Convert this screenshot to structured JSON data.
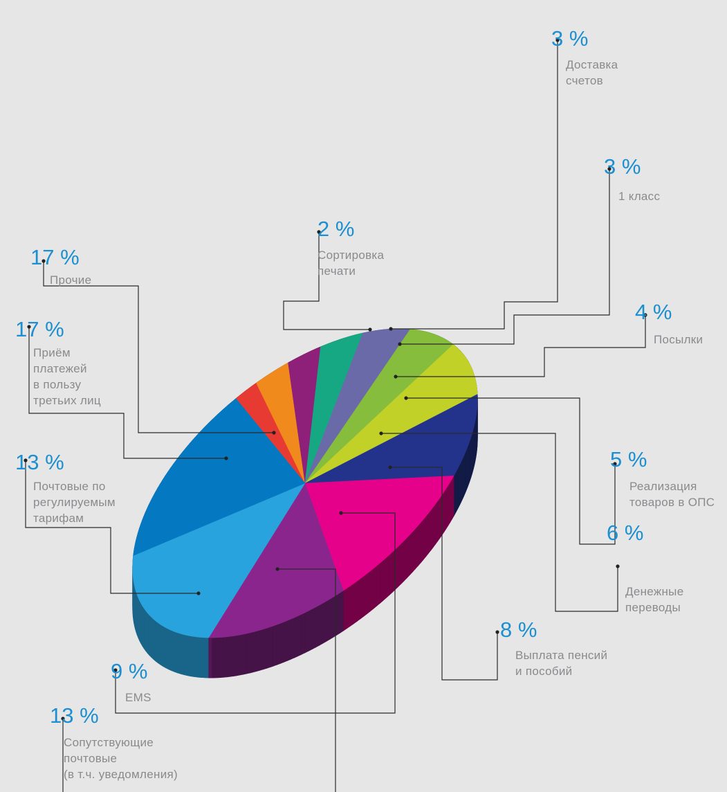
{
  "chart_data": {
    "type": "pie",
    "unit": "%",
    "slices": [
      {
        "name": "Сортировка печати",
        "value": 2,
        "label": "2 %",
        "lines": [
          "Сортировка",
          "печати"
        ],
        "color": "#e73a33"
      },
      {
        "name": "Доставка счетов",
        "value": 3,
        "label": "3 %",
        "lines": [
          "Доставка",
          "счетов"
        ],
        "color": "#f08a1d"
      },
      {
        "name": "1 класс",
        "value": 3,
        "label": "3 %",
        "lines": [
          "1 класс"
        ],
        "color": "#8e2079"
      },
      {
        "name": "Посылки",
        "value": 4,
        "label": "4 %",
        "lines": [
          "Посылки"
        ],
        "color": "#16a883"
      },
      {
        "name": "Реализация товаров в ОПС",
        "value": 5,
        "label": "5 %",
        "lines": [
          "Реализация",
          "товаров в ОПС"
        ],
        "color": "#6b6aa8"
      },
      {
        "name": "Денежные переводы",
        "value": 6,
        "label": "6 %",
        "lines": [
          "Денежные",
          "переводы"
        ],
        "color": "#86bd3c"
      },
      {
        "name": "Выплата пенсий и пособий",
        "value": 8,
        "label": "8 %",
        "lines": [
          "Выплата пенсий",
          "и пособий"
        ],
        "color": "#c2d128"
      },
      {
        "name": "EMS",
        "value": 9,
        "label": "9 %",
        "lines": [
          "EMS"
        ],
        "color": "#23338c"
      },
      {
        "name": "Сопутствующие почтовые (в т.ч. уведомления)",
        "value": 13,
        "label": "13 %",
        "lines": [
          "Сопутствующие",
          "почтовые",
          "(в т.ч. уведомления)"
        ],
        "color": "#e5018a"
      },
      {
        "name": "Почтовые по регулируемым тарифам",
        "value": 13,
        "label": "13 %",
        "lines": [
          "Почтовые по",
          "регулируемым",
          "тарифам"
        ],
        "color": "#8a258e"
      },
      {
        "name": "Приём платежей в пользу третьих лиц",
        "value": 17,
        "label": "17 %",
        "lines": [
          "Приём",
          "платежей",
          "в пользу",
          "третьих лиц"
        ],
        "color": "#29a3dd"
      },
      {
        "name": "Прочие",
        "value": 17,
        "label": "17 %",
        "lines": [
          "Прочие"
        ],
        "color": "#0479c1"
      }
    ]
  }
}
